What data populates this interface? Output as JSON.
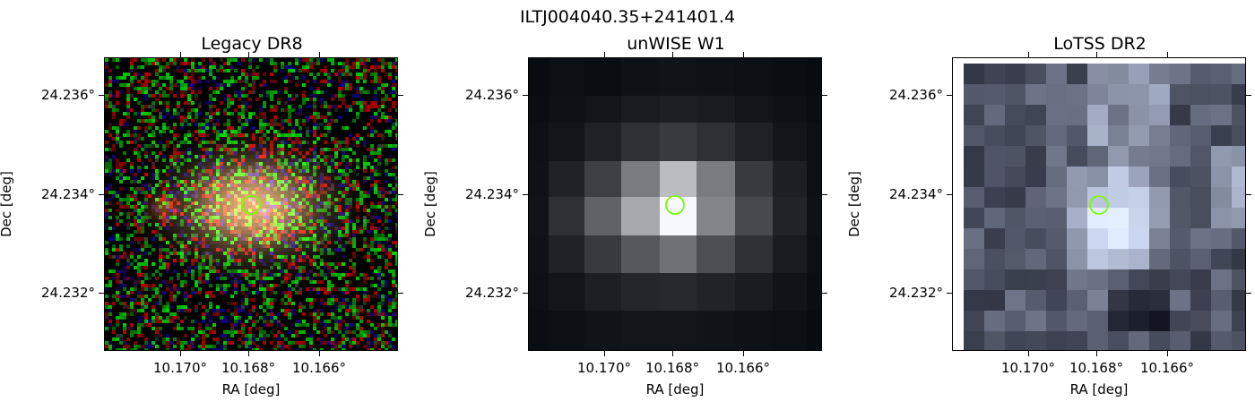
{
  "suptitle": "ILTJ004040.35+241401.4",
  "panels": [
    {
      "title": "Legacy DR8",
      "xlabel": "RA [deg]",
      "ylabel": "Dec [deg]",
      "xticks": [
        "10.170°",
        "10.168°",
        "10.166°"
      ],
      "yticks": [
        "24.236°",
        "24.234°",
        "24.232°"
      ]
    },
    {
      "title": "unWISE W1",
      "xlabel": "RA [deg]",
      "ylabel": "Dec [deg]",
      "xticks": [
        "10.170°",
        "10.168°",
        "10.166°"
      ],
      "yticks": [
        "24.236°",
        "24.234°",
        "24.232°"
      ]
    },
    {
      "title": "LoTSS DR2",
      "xlabel": "RA [deg]",
      "ylabel": "Dec [deg]",
      "xticks": [
        "10.170°",
        "10.168°",
        "10.166°"
      ],
      "yticks": [
        "24.236°",
        "24.234°",
        "24.232°"
      ]
    }
  ],
  "colors": {
    "marker": "#7cfc00"
  }
}
